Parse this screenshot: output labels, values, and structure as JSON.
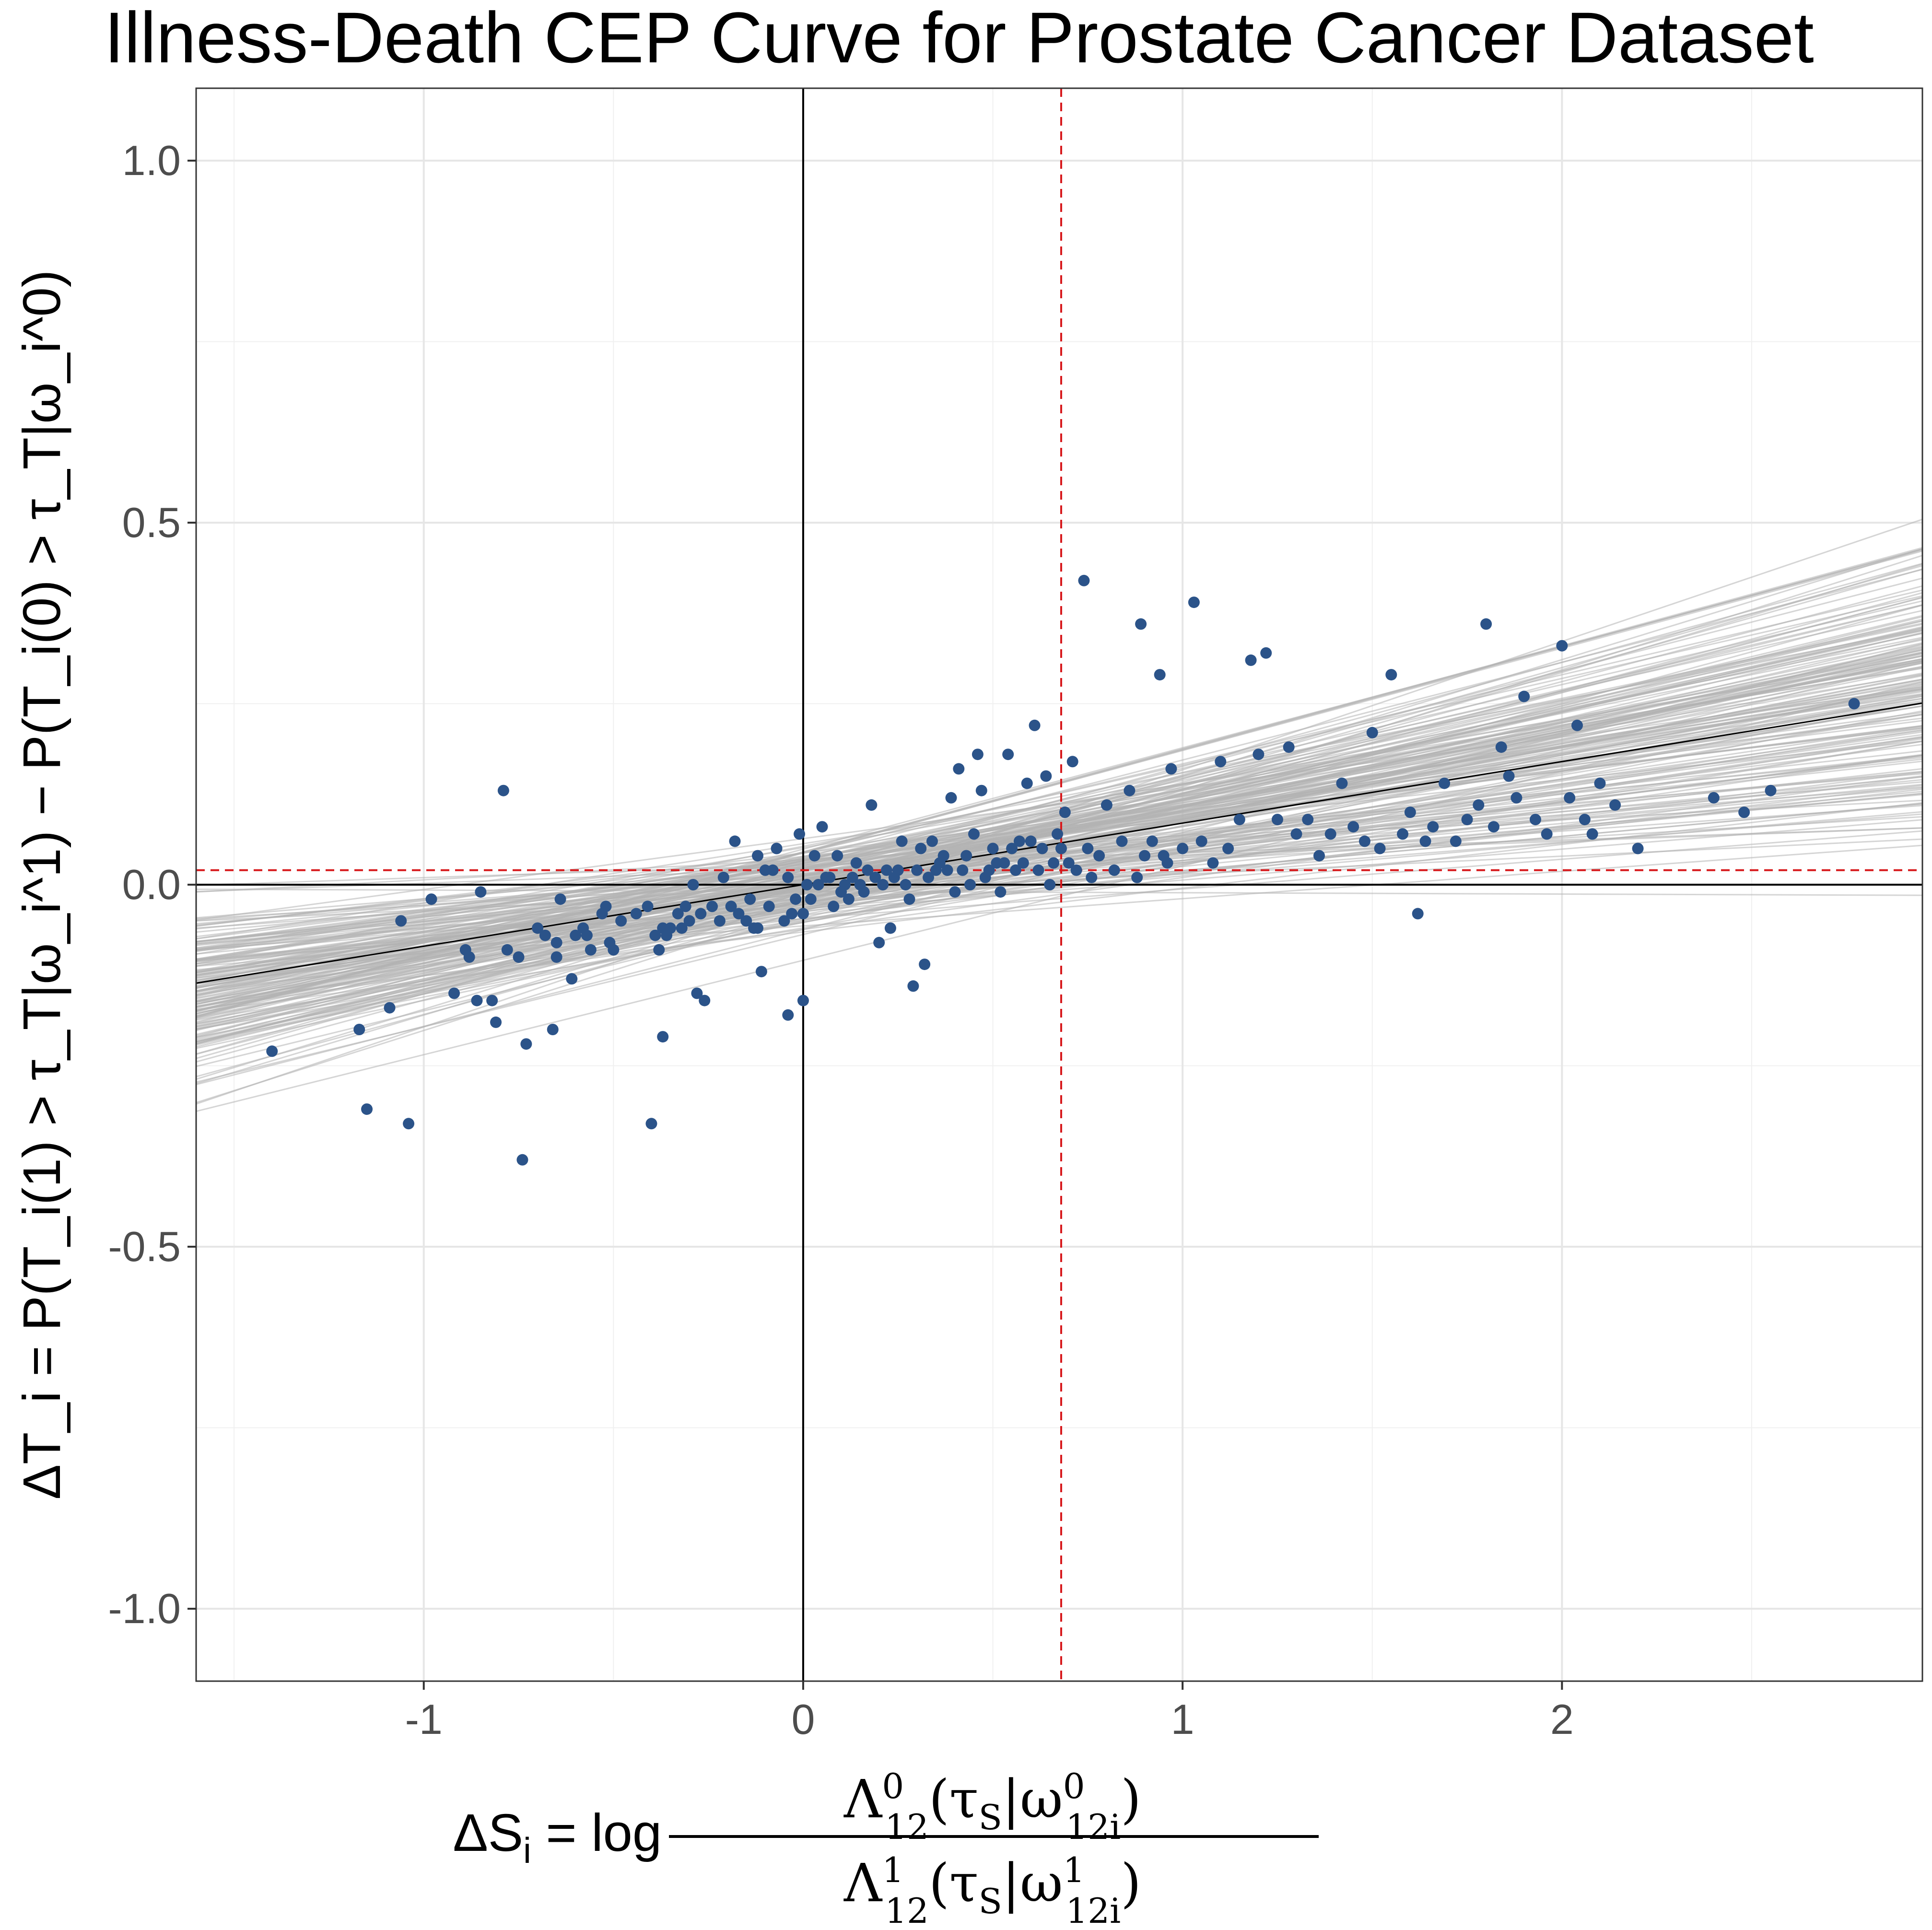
{
  "chart_data": {
    "type": "scatter",
    "title": "Illness-Death CEP Curve for Prostate Cancer Dataset",
    "xlabel": "ΔS_i = log Λ^0_12(τ_S|ω^0_12i) / Λ^1_12(τ_S|ω^1_12i)",
    "ylabel": "ΔT_i = P(T_i(1) > τ_T|ω_i^1) − P(T_i(0) > τ_T|ω_i^0)",
    "xlim": [
      -1.6,
      2.95
    ],
    "ylim": [
      -1.1,
      1.1
    ],
    "x_ticks": [
      -1,
      0,
      1,
      2
    ],
    "x_tick_labels": [
      "-1",
      "0",
      "1",
      "2"
    ],
    "y_ticks": [
      -1.0,
      -0.5,
      0.0,
      0.5,
      1.0
    ],
    "y_tick_labels": [
      "-1.0",
      "-0.5",
      "0.0",
      "0.5",
      "1.0"
    ],
    "grid": true,
    "reference_lines": {
      "x0": 0,
      "y0": 0,
      "x_dashed": 0.68,
      "y_dashed": 0.02,
      "dashed_color": "#d7191c"
    },
    "posterior_lines": {
      "count": 180,
      "intercept_mean": 0.0,
      "intercept_sd": 0.03,
      "slope_mean": 0.09,
      "slope_sd": 0.035,
      "color": "#b3b3b3"
    },
    "mean_line": {
      "intercept": 0.0,
      "slope": 0.085,
      "color": "#000000"
    },
    "point_color": "#2b5389",
    "points": [
      [
        -1.4,
        -0.23
      ],
      [
        -1.17,
        -0.2
      ],
      [
        -1.15,
        -0.31
      ],
      [
        -1.09,
        -0.17
      ],
      [
        -1.06,
        -0.05
      ],
      [
        -1.04,
        -0.33
      ],
      [
        -0.98,
        -0.02
      ],
      [
        -0.92,
        -0.15
      ],
      [
        -0.89,
        -0.09
      ],
      [
        -0.88,
        -0.1
      ],
      [
        -0.86,
        -0.16
      ],
      [
        -0.85,
        -0.01
      ],
      [
        -0.82,
        -0.16
      ],
      [
        -0.81,
        -0.19
      ],
      [
        -0.79,
        0.13
      ],
      [
        -0.78,
        -0.09
      ],
      [
        -0.75,
        -0.1
      ],
      [
        -0.74,
        -0.38
      ],
      [
        -0.73,
        -0.22
      ],
      [
        -0.7,
        -0.06
      ],
      [
        -0.68,
        -0.07
      ],
      [
        -0.66,
        -0.2
      ],
      [
        -0.65,
        -0.1
      ],
      [
        -0.65,
        -0.08
      ],
      [
        -0.64,
        -0.02
      ],
      [
        -0.61,
        -0.13
      ],
      [
        -0.6,
        -0.07
      ],
      [
        -0.58,
        -0.06
      ],
      [
        -0.57,
        -0.07
      ],
      [
        -0.56,
        -0.09
      ],
      [
        -0.53,
        -0.04
      ],
      [
        -0.52,
        -0.03
      ],
      [
        -0.51,
        -0.08
      ],
      [
        -0.5,
        -0.09
      ],
      [
        -0.48,
        -0.05
      ],
      [
        -0.44,
        -0.04
      ],
      [
        -0.41,
        -0.03
      ],
      [
        -0.4,
        -0.33
      ],
      [
        -0.39,
        -0.07
      ],
      [
        -0.38,
        -0.09
      ],
      [
        -0.37,
        -0.06
      ],
      [
        -0.37,
        -0.21
      ],
      [
        -0.36,
        -0.07
      ],
      [
        -0.35,
        -0.06
      ],
      [
        -0.33,
        -0.04
      ],
      [
        -0.32,
        -0.06
      ],
      [
        -0.31,
        -0.03
      ],
      [
        -0.3,
        -0.05
      ],
      [
        -0.29,
        0.0
      ],
      [
        -0.28,
        -0.15
      ],
      [
        -0.27,
        -0.04
      ],
      [
        -0.26,
        -0.16
      ],
      [
        -0.24,
        -0.03
      ],
      [
        -0.22,
        -0.05
      ],
      [
        -0.21,
        0.01
      ],
      [
        -0.19,
        -0.03
      ],
      [
        -0.18,
        0.06
      ],
      [
        -0.17,
        -0.04
      ],
      [
        -0.15,
        -0.05
      ],
      [
        -0.14,
        -0.02
      ],
      [
        -0.13,
        -0.06
      ],
      [
        -0.12,
        -0.06
      ],
      [
        -0.12,
        0.04
      ],
      [
        -0.11,
        -0.12
      ],
      [
        -0.1,
        0.02
      ],
      [
        -0.09,
        -0.03
      ],
      [
        -0.08,
        0.02
      ],
      [
        -0.07,
        0.05
      ],
      [
        -0.05,
        -0.05
      ],
      [
        -0.04,
        -0.18
      ],
      [
        -0.04,
        0.01
      ],
      [
        -0.03,
        -0.04
      ],
      [
        -0.02,
        -0.02
      ],
      [
        -0.01,
        0.07
      ],
      [
        0.0,
        -0.16
      ],
      [
        0.0,
        -0.04
      ],
      [
        0.01,
        0.0
      ],
      [
        0.02,
        -0.02
      ],
      [
        0.03,
        0.04
      ],
      [
        0.04,
        0.0
      ],
      [
        0.05,
        0.08
      ],
      [
        0.06,
        0.01
      ],
      [
        0.07,
        0.01
      ],
      [
        0.08,
        -0.03
      ],
      [
        0.09,
        0.04
      ],
      [
        0.1,
        -0.01
      ],
      [
        0.11,
        0.0
      ],
      [
        0.12,
        -0.02
      ],
      [
        0.13,
        0.01
      ],
      [
        0.14,
        0.03
      ],
      [
        0.15,
        0.0
      ],
      [
        0.16,
        -0.01
      ],
      [
        0.17,
        0.02
      ],
      [
        0.18,
        0.11
      ],
      [
        0.19,
        0.01
      ],
      [
        0.2,
        -0.08
      ],
      [
        0.21,
        0.0
      ],
      [
        0.22,
        0.02
      ],
      [
        0.23,
        -0.06
      ],
      [
        0.24,
        0.01
      ],
      [
        0.25,
        0.02
      ],
      [
        0.26,
        0.06
      ],
      [
        0.27,
        0.0
      ],
      [
        0.28,
        -0.02
      ],
      [
        0.29,
        -0.14
      ],
      [
        0.3,
        0.02
      ],
      [
        0.31,
        0.05
      ],
      [
        0.32,
        -0.11
      ],
      [
        0.33,
        0.01
      ],
      [
        0.34,
        0.06
      ],
      [
        0.35,
        0.02
      ],
      [
        0.36,
        0.03
      ],
      [
        0.37,
        0.04
      ],
      [
        0.38,
        0.02
      ],
      [
        0.39,
        0.12
      ],
      [
        0.4,
        -0.01
      ],
      [
        0.41,
        0.16
      ],
      [
        0.42,
        0.02
      ],
      [
        0.43,
        0.04
      ],
      [
        0.44,
        0.0
      ],
      [
        0.45,
        0.07
      ],
      [
        0.46,
        0.18
      ],
      [
        0.47,
        0.13
      ],
      [
        0.48,
        0.01
      ],
      [
        0.49,
        0.02
      ],
      [
        0.5,
        0.05
      ],
      [
        0.51,
        0.03
      ],
      [
        0.52,
        -0.01
      ],
      [
        0.53,
        0.03
      ],
      [
        0.54,
        0.18
      ],
      [
        0.55,
        0.05
      ],
      [
        0.56,
        0.02
      ],
      [
        0.57,
        0.06
      ],
      [
        0.58,
        0.03
      ],
      [
        0.59,
        0.14
      ],
      [
        0.6,
        0.06
      ],
      [
        0.61,
        0.22
      ],
      [
        0.62,
        0.02
      ],
      [
        0.63,
        0.05
      ],
      [
        0.64,
        0.15
      ],
      [
        0.65,
        0.0
      ],
      [
        0.66,
        0.03
      ],
      [
        0.67,
        0.07
      ],
      [
        0.68,
        0.05
      ],
      [
        0.69,
        0.1
      ],
      [
        0.7,
        0.03
      ],
      [
        0.71,
        0.17
      ],
      [
        0.72,
        0.02
      ],
      [
        0.74,
        0.42
      ],
      [
        0.75,
        0.05
      ],
      [
        0.76,
        0.01
      ],
      [
        0.78,
        0.04
      ],
      [
        0.8,
        0.11
      ],
      [
        0.82,
        0.02
      ],
      [
        0.84,
        0.06
      ],
      [
        0.86,
        0.13
      ],
      [
        0.88,
        0.01
      ],
      [
        0.89,
        0.36
      ],
      [
        0.9,
        0.04
      ],
      [
        0.92,
        0.06
      ],
      [
        0.94,
        0.29
      ],
      [
        0.95,
        0.04
      ],
      [
        0.96,
        0.03
      ],
      [
        0.97,
        0.16
      ],
      [
        1.0,
        0.05
      ],
      [
        1.03,
        0.39
      ],
      [
        1.05,
        0.06
      ],
      [
        1.08,
        0.03
      ],
      [
        1.1,
        0.17
      ],
      [
        1.12,
        0.05
      ],
      [
        1.15,
        0.09
      ],
      [
        1.18,
        0.31
      ],
      [
        1.2,
        0.18
      ],
      [
        1.22,
        0.32
      ],
      [
        1.25,
        0.09
      ],
      [
        1.28,
        0.19
      ],
      [
        1.3,
        0.07
      ],
      [
        1.33,
        0.09
      ],
      [
        1.36,
        0.04
      ],
      [
        1.39,
        0.07
      ],
      [
        1.42,
        0.14
      ],
      [
        1.45,
        0.08
      ],
      [
        1.48,
        0.06
      ],
      [
        1.5,
        0.21
      ],
      [
        1.52,
        0.05
      ],
      [
        1.55,
        0.29
      ],
      [
        1.58,
        0.07
      ],
      [
        1.6,
        0.1
      ],
      [
        1.62,
        -0.04
      ],
      [
        1.64,
        0.06
      ],
      [
        1.66,
        0.08
      ],
      [
        1.69,
        0.14
      ],
      [
        1.72,
        0.06
      ],
      [
        1.75,
        0.09
      ],
      [
        1.78,
        0.11
      ],
      [
        1.8,
        0.36
      ],
      [
        1.82,
        0.08
      ],
      [
        1.84,
        0.19
      ],
      [
        1.86,
        0.15
      ],
      [
        1.88,
        0.12
      ],
      [
        1.9,
        0.26
      ],
      [
        1.93,
        0.09
      ],
      [
        1.96,
        0.07
      ],
      [
        2.0,
        0.33
      ],
      [
        2.02,
        0.12
      ],
      [
        2.04,
        0.22
      ],
      [
        2.06,
        0.09
      ],
      [
        2.08,
        0.07
      ],
      [
        2.1,
        0.14
      ],
      [
        2.14,
        0.11
      ],
      [
        2.2,
        0.05
      ],
      [
        2.4,
        0.12
      ],
      [
        2.48,
        0.1
      ],
      [
        2.55,
        0.13
      ],
      [
        2.77,
        0.25
      ]
    ]
  }
}
